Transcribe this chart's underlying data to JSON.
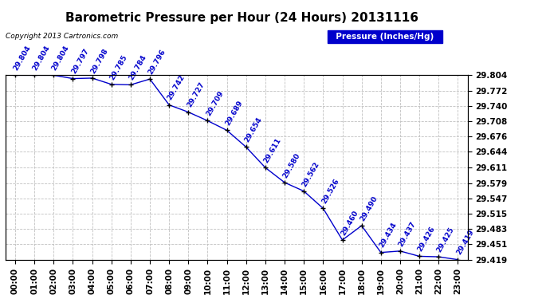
{
  "title": "Barometric Pressure per Hour (24 Hours) 20131116",
  "ylabel": "Pressure (Inches/Hg)",
  "copyright": "Copyright 2013 Cartronics.com",
  "hours": [
    0,
    1,
    2,
    3,
    4,
    5,
    6,
    7,
    8,
    9,
    10,
    11,
    12,
    13,
    14,
    15,
    16,
    17,
    18,
    19,
    20,
    21,
    22,
    23
  ],
  "hour_labels": [
    "00:00",
    "01:00",
    "02:00",
    "03:00",
    "04:00",
    "05:00",
    "06:00",
    "07:00",
    "08:00",
    "09:00",
    "10:00",
    "11:00",
    "12:00",
    "13:00",
    "14:00",
    "15:00",
    "16:00",
    "17:00",
    "18:00",
    "19:00",
    "20:00",
    "21:00",
    "22:00",
    "23:00"
  ],
  "pressure": [
    29.804,
    29.804,
    29.804,
    29.797,
    29.798,
    29.785,
    29.784,
    29.796,
    29.742,
    29.727,
    29.709,
    29.689,
    29.654,
    29.611,
    29.58,
    29.562,
    29.526,
    29.46,
    29.49,
    29.434,
    29.437,
    29.426,
    29.425,
    29.419
  ],
  "ylim_min": 29.419,
  "ylim_max": 29.804,
  "ytick_values": [
    29.419,
    29.451,
    29.483,
    29.515,
    29.547,
    29.579,
    29.611,
    29.644,
    29.676,
    29.708,
    29.74,
    29.772,
    29.804
  ],
  "line_color": "#0000cc",
  "marker_color": "#000000",
  "label_color": "#0000cc",
  "bg_color": "#ffffff",
  "grid_color": "#c0c0c0",
  "legend_bg": "#0000cc",
  "legend_text": "#ffffff",
  "title_fontsize": 11,
  "label_fontsize": 6.5,
  "tick_fontsize": 7.5,
  "copyright_fontsize": 6.5
}
